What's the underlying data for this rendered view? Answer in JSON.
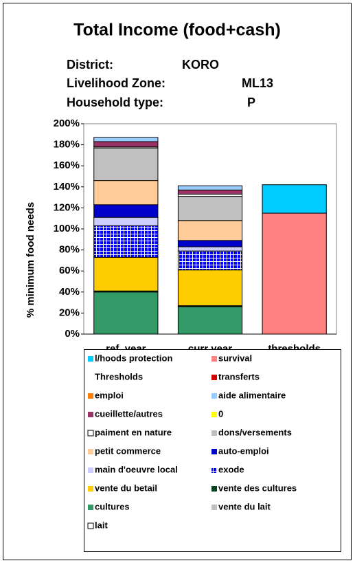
{
  "chart_data": {
    "type": "stacked_bar",
    "title": "Total Income (food+cash)",
    "info": [
      {
        "label": "District:",
        "value": "KORO"
      },
      {
        "label": "Livelihood Zone:",
        "value": "ML13"
      },
      {
        "label": "Household type:",
        "value": "P"
      }
    ],
    "y_label": "% minimum food needs",
    "categories": [
      "ref. year",
      "curr year",
      "thresholds"
    ],
    "ylim": [
      0,
      200
    ],
    "yticks": [
      {
        "value": 0,
        "label": "0%"
      },
      {
        "value": 20,
        "label": "20%"
      },
      {
        "value": 40,
        "label": "40%"
      },
      {
        "value": 60,
        "label": "60%"
      },
      {
        "value": 80,
        "label": "80%"
      },
      {
        "value": 100,
        "label": "100%"
      },
      {
        "value": 120,
        "label": "120%"
      },
      {
        "value": 140,
        "label": "140%"
      },
      {
        "value": 160,
        "label": "160%"
      },
      {
        "value": 180,
        "label": "180%"
      },
      {
        "value": 200,
        "label": "200%"
      }
    ],
    "series": [
      {
        "name": "lait",
        "color": "#ffffff",
        "values": [
          0,
          0,
          0
        ]
      },
      {
        "name": "vente du lait",
        "color": "#c0c0c0",
        "values": [
          0,
          0,
          0
        ]
      },
      {
        "name": "cultures",
        "color": "#339966",
        "values": [
          40,
          26,
          0
        ]
      },
      {
        "name": "vente des cultures",
        "color": "#006633",
        "pattern": "hatch",
        "values": [
          1,
          1,
          0
        ]
      },
      {
        "name": "vente du betail",
        "color": "#ffcc00",
        "values": [
          32,
          34,
          0
        ]
      },
      {
        "name": "exode",
        "color": "#0000ff",
        "pattern": "grid",
        "values": [
          30,
          18,
          0
        ]
      },
      {
        "name": "main d'oeuvre local",
        "color": "#ccccff",
        "values": [
          8,
          4,
          0
        ]
      },
      {
        "name": "auto-emploi",
        "color": "#0000cc",
        "values": [
          12,
          6,
          0
        ]
      },
      {
        "name": "petit commerce",
        "color": "#ffcc99",
        "values": [
          23,
          19,
          0
        ]
      },
      {
        "name": "dons/versements",
        "color": "#c0c0c0",
        "values": [
          31,
          23,
          0
        ]
      },
      {
        "name": "paiment en nature",
        "color": "#ffffff",
        "values": [
          1,
          2,
          0
        ]
      },
      {
        "name": "0",
        "color": "#ffff00",
        "values": [
          0,
          0,
          0
        ]
      },
      {
        "name": "cueillette/autres",
        "color": "#993366",
        "values": [
          5,
          4,
          0
        ]
      },
      {
        "name": "aide alimentaire",
        "color": "#99ccff",
        "values": [
          4,
          4,
          0
        ]
      },
      {
        "name": "emploi",
        "color": "#ff8000",
        "values": [
          0,
          0,
          0
        ]
      },
      {
        "name": "transferts",
        "color": "#cc0000",
        "values": [
          0,
          0,
          0
        ]
      },
      {
        "name": "Thresholds",
        "color": null,
        "values": [
          0,
          0,
          0
        ]
      },
      {
        "name": "survival",
        "color": "#ff8080",
        "values": [
          0,
          0,
          115
        ]
      },
      {
        "name": "l/hoods protection",
        "color": "#00ccff",
        "values": [
          0,
          0,
          27
        ]
      }
    ]
  }
}
